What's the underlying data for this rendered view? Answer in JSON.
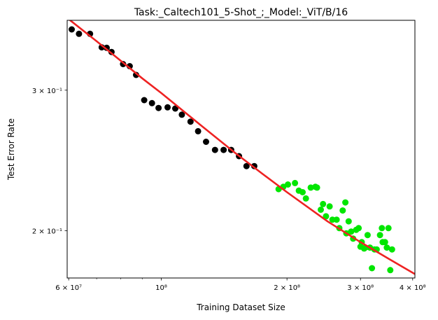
{
  "chart_data": {
    "type": "scatter",
    "title": "Task:_Caltech101_5-Shot_;_Model:_ViT/B/16",
    "xlabel": "Training Dataset Size",
    "ylabel": "Test Error Rate",
    "xscale": "log",
    "yscale": "log",
    "xlim": [
      59500000,
      405000000
    ],
    "ylim": [
      0.1745,
      0.367
    ],
    "grid": false,
    "legend": "none",
    "x_ticks": [
      {
        "value": 60000000,
        "label": "6 × 10⁷"
      },
      {
        "value": 100000000,
        "label": "10⁸"
      },
      {
        "value": 200000000,
        "label": "2 × 10⁸"
      },
      {
        "value": 300000000,
        "label": "3 × 10⁸"
      },
      {
        "value": 400000000,
        "label": "4 × 10⁸"
      }
    ],
    "x_minor_ticks": [
      70000000,
      80000000,
      90000000
    ],
    "y_ticks": [
      {
        "value": 0.2,
        "label": "2 × 10⁻¹"
      },
      {
        "value": 0.3,
        "label": "3 × 10⁻¹"
      }
    ],
    "series": [
      {
        "color": "#000000",
        "points": [
          [
            61000000,
            0.3575
          ],
          [
            63500000,
            0.353
          ],
          [
            67500000,
            0.353
          ],
          [
            72000000,
            0.3395
          ],
          [
            74000000,
            0.339
          ],
          [
            76000000,
            0.335
          ],
          [
            81000000,
            0.3235
          ],
          [
            84000000,
            0.3215
          ],
          [
            87000000,
            0.3135
          ],
          [
            91000000,
            0.2915
          ],
          [
            95000000,
            0.289
          ],
          [
            98500000,
            0.285
          ],
          [
            103500000,
            0.2855
          ],
          [
            108000000,
            0.2845
          ],
          [
            112000000,
            0.2795
          ],
          [
            117500000,
            0.274
          ],
          [
            122500000,
            0.2665
          ],
          [
            128000000,
            0.2585
          ],
          [
            134500000,
            0.2525
          ],
          [
            141000000,
            0.2525
          ],
          [
            147000000,
            0.2525
          ],
          [
            153500000,
            0.248
          ],
          [
            160000000,
            0.241
          ],
          [
            167000000,
            0.241
          ]
        ]
      },
      {
        "color": "#00e600",
        "points": [
          [
            191000000,
            0.2255
          ],
          [
            196000000,
            0.227
          ],
          [
            201000000,
            0.2285
          ],
          [
            209000000,
            0.2295
          ],
          [
            213500000,
            0.2245
          ],
          [
            218000000,
            0.2235
          ],
          [
            222000000,
            0.2195
          ],
          [
            228000000,
            0.2265
          ],
          [
            234000000,
            0.227
          ],
          [
            236000000,
            0.2265
          ],
          [
            241000000,
            0.2125
          ],
          [
            244000000,
            0.216
          ],
          [
            248000000,
            0.2085
          ],
          [
            253000000,
            0.2145
          ],
          [
            257000000,
            0.2065
          ],
          [
            263000000,
            0.2065
          ],
          [
            267000000,
            0.2015
          ],
          [
            272000000,
            0.212
          ],
          [
            276000000,
            0.217
          ],
          [
            277500000,
            0.1985
          ],
          [
            281000000,
            0.2055
          ],
          [
            285000000,
            0.1995
          ],
          [
            288000000,
            0.1955
          ],
          [
            293000000,
            0.2005
          ],
          [
            297000000,
            0.2015
          ],
          [
            300000000,
            0.191
          ],
          [
            302000000,
            0.1935
          ],
          [
            306000000,
            0.19
          ],
          [
            308000000,
            0.1905
          ],
          [
            312000000,
            0.1975
          ],
          [
            316000000,
            0.1905
          ],
          [
            319500000,
            0.1795
          ],
          [
            324000000,
            0.1895
          ],
          [
            328000000,
            0.1895
          ],
          [
            334000000,
            0.1975
          ],
          [
            337500000,
            0.2015
          ],
          [
            339000000,
            0.1935
          ],
          [
            343500000,
            0.1935
          ],
          [
            347000000,
            0.1905
          ],
          [
            350000000,
            0.2015
          ],
          [
            353500000,
            0.1785
          ],
          [
            357000000,
            0.1895
          ]
        ]
      },
      {
        "type": "line",
        "color": "#ee2222",
        "points": [
          [
            59500000,
            0.3695
          ],
          [
            70000000,
            0.3455
          ],
          [
            80000000,
            0.3265
          ],
          [
            90000000,
            0.3105
          ],
          [
            100000000,
            0.2975
          ],
          [
            125000000,
            0.2705
          ],
          [
            150000000,
            0.2505
          ],
          [
            175000000,
            0.2355
          ],
          [
            200000000,
            0.2235
          ],
          [
            250000000,
            0.2055
          ],
          [
            300000000,
            0.1935
          ],
          [
            350000000,
            0.1845
          ],
          [
            405000000,
            0.1765
          ]
        ]
      }
    ]
  }
}
